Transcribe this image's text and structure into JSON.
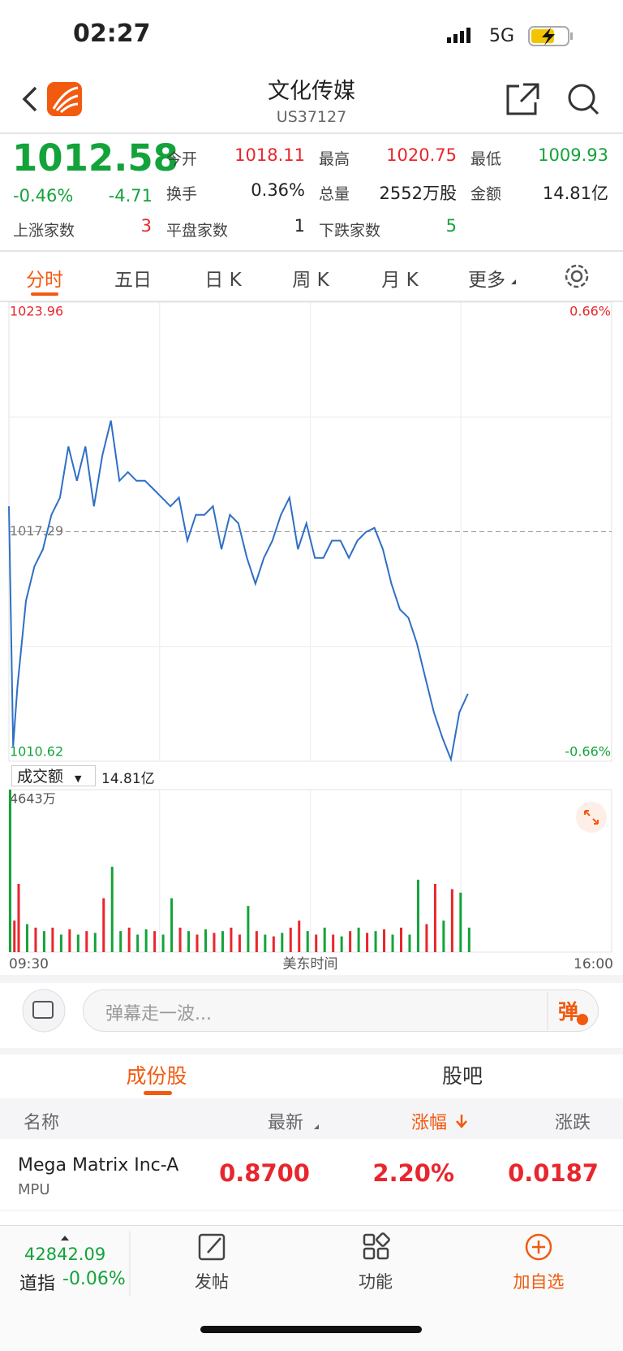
{
  "status": {
    "time": "02:27",
    "network": "5G"
  },
  "header": {
    "title": "文化传媒",
    "code": "US37127"
  },
  "quote": {
    "price": "1012.58",
    "change_pct": "-0.46%",
    "change": "-4.71",
    "fields": [
      {
        "label": "今开",
        "value": "1018.11"
      },
      {
        "label": "最高",
        "value": "1020.75"
      },
      {
        "label": "最低",
        "value": "1009.93"
      },
      {
        "label": "换手",
        "value": "0.36%"
      },
      {
        "label": "总量",
        "value": "2552万股"
      },
      {
        "label": "金额",
        "value": "14.81亿"
      },
      {
        "label": "上涨家数",
        "value": "3"
      },
      {
        "label": "平盘家数",
        "value": "1"
      },
      {
        "label": "下跌家数",
        "value": "5"
      }
    ]
  },
  "tabs": [
    "分时",
    "五日",
    "日 K",
    "周 K",
    "月 K",
    "更多"
  ],
  "volume_selector": {
    "label": "成交额",
    "total": "14.81亿"
  },
  "chart_data": [
    {
      "type": "line",
      "color": "#2f6fc4",
      "x": [
        0,
        2.75,
        5.5,
        11,
        16.5,
        22,
        27.5,
        33,
        38.5,
        44,
        49.5,
        55,
        60.5,
        66,
        71.5,
        77,
        82.5,
        88,
        93.5,
        99,
        104.5,
        110,
        115.5,
        121,
        126.5,
        132,
        137.5,
        143,
        148.5,
        154,
        159.5,
        165,
        170.5,
        176,
        181.5,
        187,
        192.5,
        198,
        203.5,
        209,
        214.5,
        220,
        225.5,
        231,
        236.5,
        242,
        247.5,
        253,
        258.5,
        264,
        269.5,
        275,
        280.5,
        286,
        291.5,
        297
      ],
      "values": [
        1018.03,
        1011.05,
        1012.79,
        1015.28,
        1016.28,
        1016.78,
        1017.78,
        1018.28,
        1019.77,
        1018.77,
        1019.77,
        1018.03,
        1019.52,
        1020.52,
        1018.77,
        1019.02,
        1018.77,
        1018.77,
        1018.53,
        1018.28,
        1018.03,
        1018.28,
        1017.03,
        1017.78,
        1017.78,
        1018.03,
        1016.78,
        1017.78,
        1017.53,
        1016.53,
        1015.78,
        1016.53,
        1017.03,
        1017.78,
        1018.28,
        1016.78,
        1017.53,
        1016.53,
        1016.53,
        1017.03,
        1017.03,
        1016.53,
        1017.03,
        1017.28,
        1017.4,
        1016.78,
        1015.78,
        1015.03,
        1014.79,
        1014.04,
        1013.04,
        1012.04,
        1011.3,
        1010.67,
        1012.04,
        1012.58
      ],
      "xlim": [
        0,
        390
      ],
      "ylim": [
        1010.62,
        1023.96
      ],
      "yticks": [
        1010.62,
        1017.29,
        1023.96
      ],
      "y2lim": [
        -0.66,
        0.66
      ],
      "y2ticks": [
        {
          "value": -0.66,
          "label": "-0.66%"
        },
        {
          "value": 0.66,
          "label": "0.66%"
        }
      ]
    },
    {
      "type": "bar",
      "x": [
        0,
        2.75,
        5.5,
        11,
        16.5,
        22,
        27.5,
        33,
        38.5,
        44,
        49.5,
        55,
        60.5,
        66,
        71.5,
        77,
        82.5,
        88,
        93.5,
        99,
        104.5,
        110,
        115.5,
        121,
        126.5,
        132,
        137.5,
        143,
        148.5,
        154,
        159.5,
        165,
        170.5,
        176,
        181.5,
        187,
        192.5,
        198,
        203.5,
        209,
        214.5,
        220,
        225.5,
        231,
        236.5,
        242,
        247.5,
        253,
        258.5,
        264,
        269.5,
        275,
        280.5,
        286,
        291.5,
        297
      ],
      "values": [
        4643,
        900,
        1950,
        800,
        700,
        600,
        700,
        500,
        650,
        500,
        600,
        550,
        1540,
        2440,
        600,
        700,
        500,
        650,
        600,
        500,
        1540,
        700,
        600,
        500,
        650,
        550,
        600,
        700,
        500,
        1320,
        600,
        500,
        450,
        550,
        700,
        900,
        600,
        500,
        700,
        500,
        450,
        600,
        700,
        550,
        600,
        650,
        500,
        700,
        500,
        2070,
        800,
        1950,
        900,
        1800,
        1700,
        700
      ],
      "colors": [
        "#14a33a",
        "#e8262d",
        "#e8262d",
        "#14a33a",
        "#e8262d",
        "#14a33a",
        "#e8262d",
        "#14a33a",
        "#e8262d",
        "#14a33a",
        "#e8262d",
        "#14a33a",
        "#e8262d",
        "#14a33a",
        "#14a33a",
        "#e8262d",
        "#14a33a",
        "#14a33a",
        "#e8262d",
        "#14a33a",
        "#14a33a",
        "#e8262d",
        "#14a33a",
        "#e8262d",
        "#14a33a",
        "#e8262d",
        "#14a33a",
        "#e8262d",
        "#e8262d",
        "#14a33a",
        "#e8262d",
        "#14a33a",
        "#e8262d",
        "#14a33a",
        "#e8262d",
        "#e8262d",
        "#14a33a",
        "#e8262d",
        "#14a33a",
        "#e8262d",
        "#14a33a",
        "#e8262d",
        "#14a33a",
        "#e8262d",
        "#14a33a",
        "#e8262d",
        "#14a33a",
        "#e8262d",
        "#14a33a",
        "#14a33a",
        "#e8262d",
        "#e8262d",
        "#14a33a",
        "#e8262d",
        "#14a33a",
        "#14a33a"
      ],
      "xlim": [
        0,
        390
      ],
      "ylim": [
        0,
        4643
      ],
      "yticks": [
        {
          "value": 4643,
          "label": "4643万"
        }
      ],
      "xticks": [
        {
          "value": 0,
          "label": "09:30"
        },
        {
          "value": 390,
          "label": "16:00"
        }
      ],
      "xlabel": "美东时间"
    }
  ],
  "danmu": {
    "placeholder": "弹幕走一波...",
    "button": "弹"
  },
  "sections": [
    "成份股",
    "股吧"
  ],
  "table": {
    "header": [
      "名称",
      "最新",
      "涨幅",
      "涨跌"
    ],
    "rows": [
      {
        "name": "Mega Matrix Inc-A",
        "ticker": "MPU",
        "latest": "0.8700",
        "pct": "2.20%",
        "change": "0.0187"
      }
    ]
  },
  "bottom_bar": {
    "index_value": "42842.09",
    "index_name": "道指",
    "index_change": "-0.06%",
    "nav": [
      "发帖",
      "功能",
      "加自选"
    ]
  }
}
